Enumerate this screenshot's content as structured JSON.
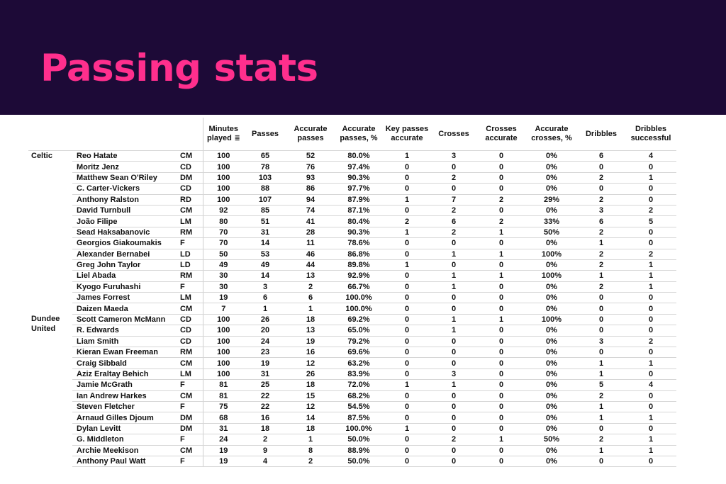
{
  "title": "Passing stats",
  "columns": [
    "Minutes played",
    "Passes",
    "Accurate passes",
    "Accurate passes, %",
    "Key passes accurate",
    "Crosses",
    "Crosses accurate",
    "Accurate crosses, %",
    "Dribbles",
    "Dribbles successful"
  ],
  "sort_icon": "sort-icon",
  "teams": [
    {
      "name": "Celtic",
      "rows": [
        [
          "Reo Hatate",
          "CM",
          "100",
          "65",
          "52",
          "80.0%",
          "1",
          "3",
          "0",
          "0%",
          "6",
          "4"
        ],
        [
          "Moritz Jenz",
          "CD",
          "100",
          "78",
          "76",
          "97.4%",
          "0",
          "0",
          "0",
          "0%",
          "0",
          "0"
        ],
        [
          "Matthew Sean O'Riley",
          "DM",
          "100",
          "103",
          "93",
          "90.3%",
          "0",
          "2",
          "0",
          "0%",
          "2",
          "1"
        ],
        [
          "C. Carter-Vickers",
          "CD",
          "100",
          "88",
          "86",
          "97.7%",
          "0",
          "0",
          "0",
          "0%",
          "0",
          "0"
        ],
        [
          "Anthony Ralston",
          "RD",
          "100",
          "107",
          "94",
          "87.9%",
          "1",
          "7",
          "2",
          "29%",
          "2",
          "0"
        ],
        [
          "David Turnbull",
          "CM",
          "92",
          "85",
          "74",
          "87.1%",
          "0",
          "2",
          "0",
          "0%",
          "3",
          "2"
        ],
        [
          "João Filipe",
          "LM",
          "80",
          "51",
          "41",
          "80.4%",
          "2",
          "6",
          "2",
          "33%",
          "6",
          "5"
        ],
        [
          "Sead Haksabanovic",
          "RM",
          "70",
          "31",
          "28",
          "90.3%",
          "1",
          "2",
          "1",
          "50%",
          "2",
          "0"
        ],
        [
          "Georgios Giakoumakis",
          "F",
          "70",
          "14",
          "11",
          "78.6%",
          "0",
          "0",
          "0",
          "0%",
          "1",
          "0"
        ],
        [
          "Alexander Bernabei",
          "LD",
          "50",
          "53",
          "46",
          "86.8%",
          "0",
          "1",
          "1",
          "100%",
          "2",
          "2"
        ],
        [
          "Greg John Taylor",
          "LD",
          "49",
          "49",
          "44",
          "89.8%",
          "1",
          "0",
          "0",
          "0%",
          "2",
          "1"
        ],
        [
          "Liel Abada",
          "RM",
          "30",
          "14",
          "13",
          "92.9%",
          "0",
          "1",
          "1",
          "100%",
          "1",
          "1"
        ],
        [
          "Kyogo Furuhashi",
          "F",
          "30",
          "3",
          "2",
          "66.7%",
          "0",
          "1",
          "0",
          "0%",
          "2",
          "1"
        ],
        [
          "James Forrest",
          "LM",
          "19",
          "6",
          "6",
          "100.0%",
          "0",
          "0",
          "0",
          "0%",
          "0",
          "0"
        ],
        [
          "Daizen Maeda",
          "CM",
          "7",
          "1",
          "1",
          "100.0%",
          "0",
          "0",
          "0",
          "0%",
          "0",
          "0"
        ]
      ]
    },
    {
      "name": "Dundee United",
      "rows": [
        [
          "Scott Cameron McMann",
          "CD",
          "100",
          "26",
          "18",
          "69.2%",
          "0",
          "1",
          "1",
          "100%",
          "0",
          "0"
        ],
        [
          "R. Edwards",
          "CD",
          "100",
          "20",
          "13",
          "65.0%",
          "0",
          "1",
          "0",
          "0%",
          "0",
          "0"
        ],
        [
          "Liam Smith",
          "CD",
          "100",
          "24",
          "19",
          "79.2%",
          "0",
          "0",
          "0",
          "0%",
          "3",
          "2"
        ],
        [
          "Kieran Ewan Freeman",
          "RM",
          "100",
          "23",
          "16",
          "69.6%",
          "0",
          "0",
          "0",
          "0%",
          "0",
          "0"
        ],
        [
          "Craig Sibbald",
          "CM",
          "100",
          "19",
          "12",
          "63.2%",
          "0",
          "0",
          "0",
          "0%",
          "1",
          "1"
        ],
        [
          "Aziz Eraltay Behich",
          "LM",
          "100",
          "31",
          "26",
          "83.9%",
          "0",
          "3",
          "0",
          "0%",
          "1",
          "0"
        ],
        [
          "Jamie McGrath",
          "F",
          "81",
          "25",
          "18",
          "72.0%",
          "1",
          "1",
          "0",
          "0%",
          "5",
          "4"
        ],
        [
          "Ian Andrew Harkes",
          "CM",
          "81",
          "22",
          "15",
          "68.2%",
          "0",
          "0",
          "0",
          "0%",
          "2",
          "0"
        ],
        [
          "Steven Fletcher",
          "F",
          "75",
          "22",
          "12",
          "54.5%",
          "0",
          "0",
          "0",
          "0%",
          "1",
          "0"
        ],
        [
          "Arnaud Gilles Djoum",
          "DM",
          "68",
          "16",
          "14",
          "87.5%",
          "0",
          "0",
          "0",
          "0%",
          "1",
          "1"
        ],
        [
          "Dylan Levitt",
          "DM",
          "31",
          "18",
          "18",
          "100.0%",
          "1",
          "0",
          "0",
          "0%",
          "0",
          "0"
        ],
        [
          "G. Middleton",
          "F",
          "24",
          "2",
          "1",
          "50.0%",
          "0",
          "2",
          "1",
          "50%",
          "2",
          "1"
        ],
        [
          "Archie Meekison",
          "CM",
          "19",
          "9",
          "8",
          "88.9%",
          "0",
          "0",
          "0",
          "0%",
          "1",
          "1"
        ],
        [
          "Anthony Paul Watt",
          "F",
          "19",
          "4",
          "2",
          "50.0%",
          "0",
          "0",
          "0",
          "0%",
          "0",
          "0"
        ]
      ]
    }
  ]
}
